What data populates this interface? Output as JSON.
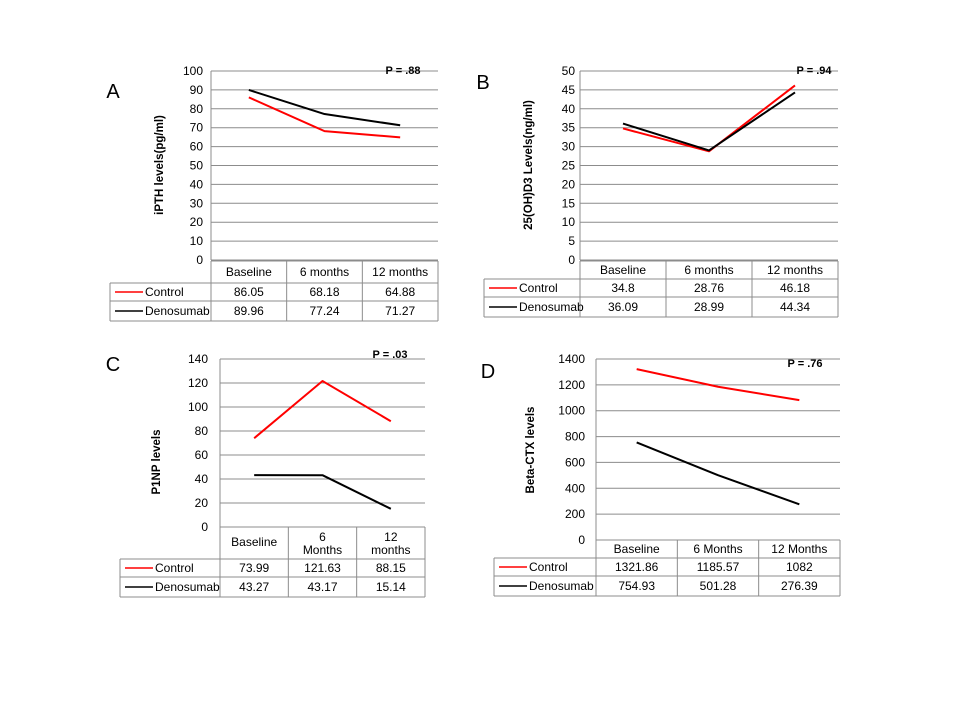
{
  "colors": {
    "control": "#ff0000",
    "denosumab": "#000000",
    "grid": "#8c8c8c",
    "border": "#8c8c8c"
  },
  "chart_data": [
    {
      "type": "line",
      "panel_letter": "A",
      "ylabel": "iPTH levels(pg/ml)",
      "pvalue": "P = .88",
      "ylim": [
        0,
        100
      ],
      "yticks": [
        0,
        10,
        20,
        30,
        40,
        50,
        60,
        70,
        80,
        90,
        100
      ],
      "categories": [
        "Baseline",
        "6 months",
        "12 months"
      ],
      "series": [
        {
          "name": "Control",
          "values": [
            86.05,
            68.18,
            64.88
          ],
          "labels": [
            "86.05",
            "68.18",
            "64.88"
          ]
        },
        {
          "name": "Denosumab",
          "values": [
            89.96,
            77.24,
            71.27
          ],
          "labels": [
            "89.96",
            "77.24",
            "71.27"
          ]
        }
      ]
    },
    {
      "type": "line",
      "panel_letter": "B",
      "ylabel": "25(OH)D3 Levels(ng/ml)",
      "pvalue": "P = .94",
      "ylim": [
        0,
        50
      ],
      "yticks": [
        0,
        5,
        10,
        15,
        20,
        25,
        30,
        35,
        40,
        45,
        50
      ],
      "categories": [
        "Baseline",
        "6 months",
        "12 months"
      ],
      "series": [
        {
          "name": "Control",
          "values": [
            34.8,
            28.76,
            46.18
          ],
          "labels": [
            "34.8",
            "28.76",
            "46.18"
          ]
        },
        {
          "name": "Denosumab",
          "values": [
            36.09,
            28.99,
            44.34
          ],
          "labels": [
            "36.09",
            "28.99",
            "44.34"
          ]
        }
      ]
    },
    {
      "type": "line",
      "panel_letter": "C",
      "ylabel": "P1NP levels",
      "pvalue": "P =  .03",
      "ylim": [
        0,
        140
      ],
      "yticks": [
        0,
        20,
        40,
        60,
        80,
        100,
        120,
        140
      ],
      "categories": [
        "Baseline",
        "6 Months",
        "12 months"
      ],
      "series": [
        {
          "name": "Control",
          "values": [
            73.99,
            121.63,
            88.15
          ],
          "labels": [
            "73.99",
            "121.63",
            "88.15"
          ]
        },
        {
          "name": "Denosumab",
          "values": [
            43.27,
            43.17,
            15.14
          ],
          "labels": [
            "43.27",
            "43.17",
            "15.14"
          ]
        }
      ]
    },
    {
      "type": "line",
      "panel_letter": "D",
      "ylabel": "Beta-CTX levels",
      "pvalue": "P = .76",
      "ylim": [
        0,
        1400
      ],
      "yticks": [
        0,
        200,
        400,
        600,
        800,
        1000,
        1200,
        1400
      ],
      "categories": [
        "Baseline",
        "6 Months",
        "12 Months"
      ],
      "series": [
        {
          "name": "Control",
          "values": [
            1321.86,
            1185.57,
            1082
          ],
          "labels": [
            "1321.86",
            "1185.57",
            "1082"
          ]
        },
        {
          "name": "Denosumab",
          "values": [
            754.93,
            501.28,
            276.39
          ],
          "labels": [
            "754.93",
            "501.28",
            "276.39"
          ]
        }
      ]
    }
  ]
}
